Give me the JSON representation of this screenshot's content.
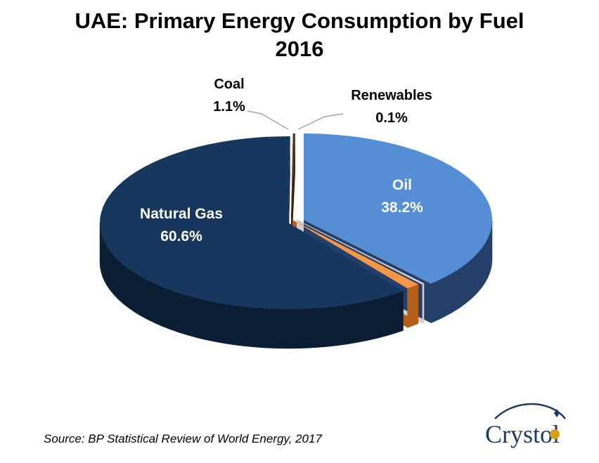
{
  "chart_data": {
    "type": "pie",
    "title": "UAE: Primary Energy Consumption by Fuel",
    "subtitle": "2016",
    "slices": [
      {
        "name": "Oil",
        "value": 38.2,
        "label": "38.2%",
        "color": "#558ed5",
        "side": "#24406a"
      },
      {
        "name": "Renewables",
        "value": 0.1,
        "label": "0.1%",
        "color": "#ffffff",
        "side": "#cfcfcf"
      },
      {
        "name": "Coal",
        "value": 1.1,
        "label": "1.1%",
        "color": "#f79646",
        "side": "#b65f1a"
      },
      {
        "name": "Natural Gas",
        "value": 60.6,
        "label": "60.6%",
        "color": "#17375e",
        "side": "#0b1e33"
      },
      {
        "name": "",
        "value": 0.0,
        "label": "",
        "color": "#5a3217",
        "side": "#3a1f0d"
      }
    ]
  },
  "source": "Source: BP Statistical Review of World Energy, 2017",
  "logo": {
    "text": "Crystol",
    "icon": "crystol-logo",
    "color": "#1f3864",
    "accent": "#c0504d"
  }
}
